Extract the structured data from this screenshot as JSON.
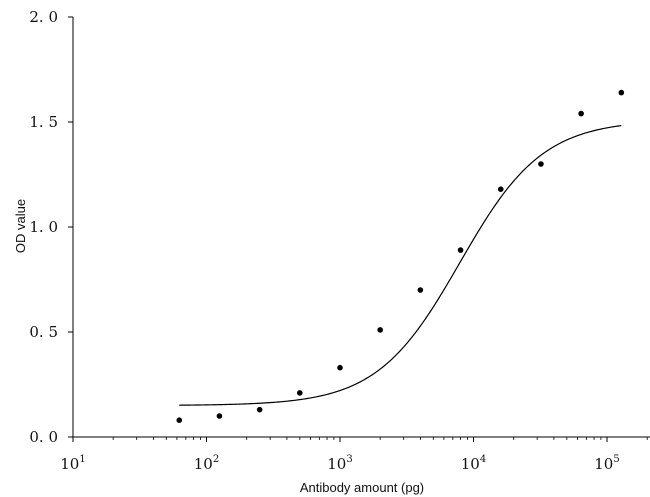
{
  "chart_data": {
    "type": "scatter",
    "title": "",
    "xlabel": "Antibody amount (pg)",
    "ylabel": "OD value",
    "x_scale": "log",
    "xlim": [
      10,
      150000
    ],
    "ylim": [
      0,
      2.0
    ],
    "grid": false,
    "legend": "none",
    "x_ticks": [
      {
        "base": "10",
        "exp": "1",
        "value": 10
      },
      {
        "base": "10",
        "exp": "2",
        "value": 100
      },
      {
        "base": "10",
        "exp": "3",
        "value": 1000
      },
      {
        "base": "10",
        "exp": "4",
        "value": 10000
      },
      {
        "base": "10",
        "exp": "5",
        "value": 100000
      }
    ],
    "y_ticks": [
      {
        "label": "0. 0",
        "value": 0.0
      },
      {
        "label": "0. 5",
        "value": 0.5
      },
      {
        "label": "1. 0",
        "value": 1.0
      },
      {
        "label": "1. 5",
        "value": 1.5
      },
      {
        "label": "2. 0",
        "value": 2.0
      }
    ],
    "points": [
      {
        "x": 62.5,
        "y": 0.08
      },
      {
        "x": 125,
        "y": 0.1
      },
      {
        "x": 250,
        "y": 0.13
      },
      {
        "x": 500,
        "y": 0.21
      },
      {
        "x": 1000,
        "y": 0.33
      },
      {
        "x": 2000,
        "y": 0.51
      },
      {
        "x": 4000,
        "y": 0.7
      },
      {
        "x": 8000,
        "y": 0.89
      },
      {
        "x": 16000,
        "y": 1.18
      },
      {
        "x": 32000,
        "y": 1.3
      },
      {
        "x": 64000,
        "y": 1.54
      },
      {
        "x": 128000,
        "y": 1.64
      }
    ],
    "fit_curve": {
      "model": "4PL",
      "bottom": 0.15,
      "top": 1.51,
      "ec50": 7900,
      "hill": 1.4,
      "x_range": [
        62.5,
        128000
      ]
    },
    "colors": {
      "axis": "#000000",
      "marker": "#000000",
      "curve": "#000000"
    }
  }
}
